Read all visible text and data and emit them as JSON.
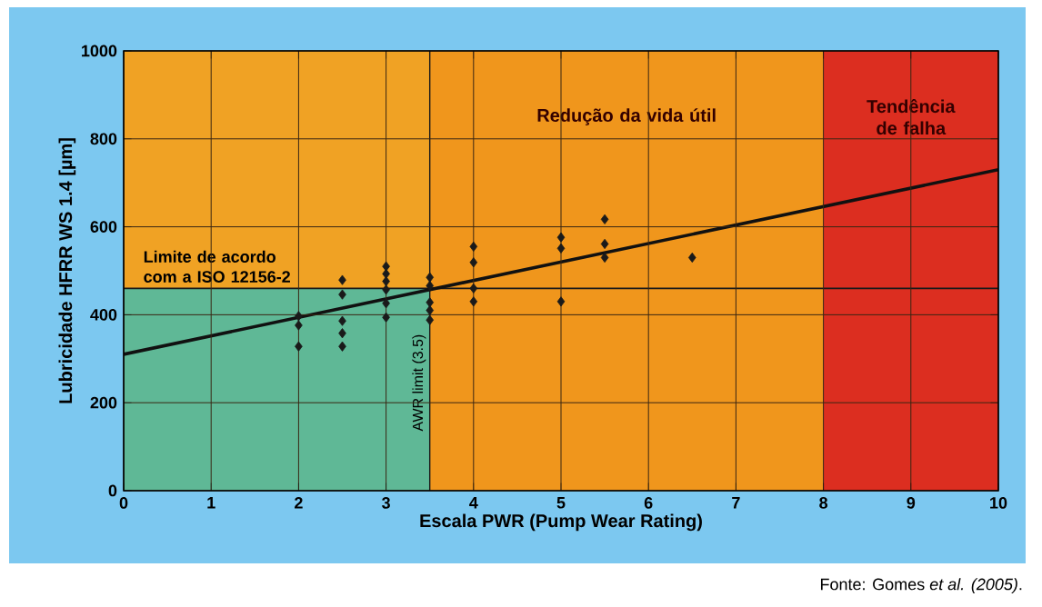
{
  "chart_data": {
    "type": "scatter",
    "xlabel": "Escala PWR (Pump Wear Rating)",
    "ylabel": "Lubricidade HFRR WS 1.4 [µm]",
    "xlim": [
      0,
      10
    ],
    "ylim": [
      0,
      1000
    ],
    "xticks": [
      0,
      1,
      2,
      3,
      4,
      5,
      6,
      7,
      8,
      9,
      10
    ],
    "yticks": [
      0,
      200,
      400,
      600,
      800,
      1000
    ],
    "grid": true,
    "series": [
      {
        "type": "scatter",
        "marker": "diamond",
        "color": "#1a1a1a",
        "x": [
          2,
          2,
          2,
          2.5,
          2.5,
          2.5,
          2.5,
          2.5,
          3,
          3,
          3,
          3,
          3,
          3,
          3.5,
          3.5,
          3.5,
          3.5,
          3.5,
          4,
          4,
          4,
          4,
          5,
          5,
          5,
          5.5,
          5.5,
          5.5,
          6.5
        ],
        "values": [
          397,
          376,
          328,
          479,
          446,
          386,
          358,
          328,
          510,
          493,
          476,
          457,
          426,
          394,
          485,
          466,
          428,
          410,
          388,
          555,
          519,
          460,
          430,
          576,
          551,
          430,
          617,
          561,
          530,
          530
        ]
      },
      {
        "type": "line",
        "color": "#111111",
        "x": [
          0,
          10
        ],
        "values": [
          310,
          730
        ]
      }
    ],
    "bands": [
      {
        "axis": "y",
        "from": 460,
        "to": 1000,
        "color": "#f0a224"
      },
      {
        "axis": "y",
        "from": 0,
        "to": 460,
        "color": "#5fb896"
      },
      {
        "axis": "x",
        "from": 3.5,
        "to": 8,
        "color": "#f0961c",
        "label": "Redução da vida útil"
      },
      {
        "axis": "x",
        "from": 8,
        "to": 10,
        "color": "#dc2e20",
        "label": "Tendência de falha"
      }
    ],
    "ref_lines": [
      {
        "axis": "y",
        "value": 460,
        "label": "Limite de acordo com a ISO 12156-2",
        "color": "#1a1a1a"
      },
      {
        "axis": "x",
        "value": 3.5,
        "label": "AWR limit (3.5)",
        "color": "#1a1a1a"
      }
    ],
    "annotations": [
      "Fonte: Gomes *et al. (2005)*."
    ]
  }
}
